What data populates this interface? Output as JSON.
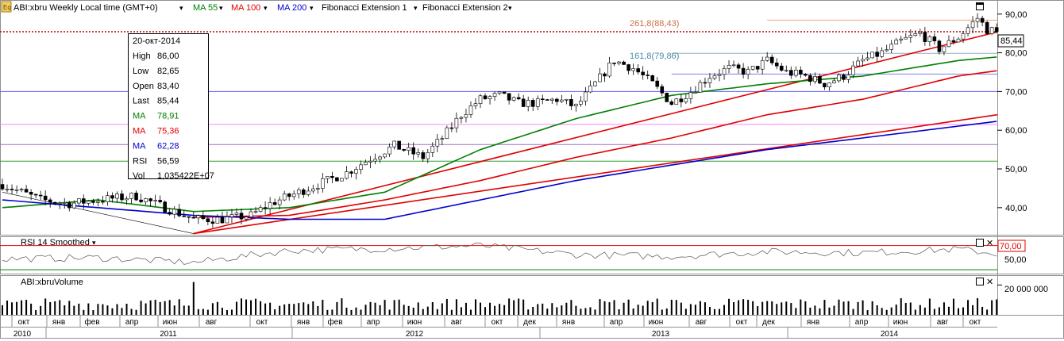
{
  "toolbar": {
    "symbol_label": "ABI:xbru Weekly Local time (GMT+0)",
    "ma55_label": "MA 55",
    "ma100_label": "MA 100",
    "ma200_label": "MA 200",
    "fib1_label": "Fibonacci Extension 1",
    "fib2_label": "Fibonacci Extension 2",
    "dropdown_glyph": "▾",
    "ma55_color": "#008000",
    "ma100_color": "#e00000",
    "ma200_color": "#0000d0"
  },
  "tooltip": {
    "date": "20-окт-2014",
    "rows": [
      {
        "label": "High",
        "value": "86,00",
        "color": "#000000"
      },
      {
        "label": "Low",
        "value": "82,65",
        "color": "#000000"
      },
      {
        "label": "Open",
        "value": "83,40",
        "color": "#000000"
      },
      {
        "label": "Last",
        "value": "85,44",
        "color": "#000000"
      },
      {
        "label": "MA",
        "value": "78,91",
        "color": "#008000"
      },
      {
        "label": "MA",
        "value": "75,36",
        "color": "#e00000"
      },
      {
        "label": "MA",
        "value": "62,28",
        "color": "#0000d0"
      },
      {
        "label": "RSI",
        "value": "56,59",
        "color": "#000000"
      },
      {
        "label": "Vol",
        "value": "1,035422E+07",
        "color": "#000000"
      }
    ]
  },
  "price_panel": {
    "last_price_label": "85,44",
    "last_price": 85.44,
    "fib_labels": [
      {
        "text": "261,8(88,43)",
        "value": 88.43,
        "color": "#c8704a"
      },
      {
        "text": "161,8(79,86)",
        "value": 79.86,
        "color": "#4a8aa8"
      }
    ]
  },
  "rsi_panel": {
    "title": "RSI 14 Smoothed",
    "dropdown_glyph": "▾",
    "level_label": "70,00",
    "axis_label": "50,00"
  },
  "volume_panel": {
    "title": "ABI:xbruVolume",
    "axis_label": "20 000 000"
  },
  "panel_controls": {
    "restore_glyph": "□",
    "close_glyph": "✕"
  },
  "chart_data": {
    "type": "candlestick",
    "x_start": "2010-10",
    "x_end": "2014-10",
    "y_ticks": [
      "90,00",
      "80,00",
      "70,00",
      "60,00",
      "50,00",
      "40,00"
    ],
    "ylim": [
      33,
      92
    ],
    "months": [
      "окт",
      "янв",
      "фев",
      "апр",
      "июн",
      "авг",
      "окт",
      "янв",
      "фев",
      "апр",
      "июн",
      "авг",
      "окт",
      "дек",
      "янв",
      "апр",
      "июн",
      "авг",
      "окт",
      "дек",
      "янв",
      "апр",
      "июн",
      "авг",
      "окт"
    ],
    "years": [
      "2010",
      "2011",
      "2012",
      "2013",
      "2014"
    ],
    "price_keypoints": [
      [
        0,
        46
      ],
      [
        8,
        42
      ],
      [
        14,
        41
      ],
      [
        20,
        42
      ],
      [
        28,
        43
      ],
      [
        34,
        40
      ],
      [
        40,
        37
      ],
      [
        46,
        37
      ],
      [
        52,
        38
      ],
      [
        56,
        41
      ],
      [
        64,
        45
      ],
      [
        72,
        49
      ],
      [
        76,
        52
      ],
      [
        82,
        56
      ],
      [
        88,
        53
      ],
      [
        92,
        58
      ],
      [
        96,
        64
      ],
      [
        100,
        68
      ],
      [
        104,
        69
      ],
      [
        108,
        67
      ],
      [
        112,
        67
      ],
      [
        116,
        68
      ],
      [
        120,
        66
      ],
      [
        124,
        72
      ],
      [
        128,
        78
      ],
      [
        132,
        76
      ],
      [
        136,
        72
      ],
      [
        140,
        67
      ],
      [
        144,
        70
      ],
      [
        148,
        74
      ],
      [
        152,
        76
      ],
      [
        156,
        75
      ],
      [
        160,
        78
      ],
      [
        164,
        75
      ],
      [
        168,
        74
      ],
      [
        172,
        72
      ],
      [
        176,
        74
      ],
      [
        180,
        78
      ],
      [
        184,
        80
      ],
      [
        188,
        83
      ],
      [
        192,
        85
      ],
      [
        196,
        81
      ],
      [
        200,
        84
      ],
      [
        204,
        89
      ],
      [
        206,
        86
      ],
      [
        208,
        85.44
      ]
    ],
    "ma_keypoints": {
      "ma55": [
        [
          0,
          40
        ],
        [
          20,
          42
        ],
        [
          40,
          39
        ],
        [
          60,
          40
        ],
        [
          80,
          44
        ],
        [
          100,
          55
        ],
        [
          120,
          63
        ],
        [
          140,
          69
        ],
        [
          160,
          72
        ],
        [
          180,
          74
        ],
        [
          200,
          78
        ],
        [
          208,
          78.91
        ]
      ],
      "ma100": [
        [
          40,
          37.5
        ],
        [
          60,
          38
        ],
        [
          80,
          42
        ],
        [
          100,
          47
        ],
        [
          120,
          53
        ],
        [
          140,
          58
        ],
        [
          160,
          64
        ],
        [
          180,
          68
        ],
        [
          200,
          74
        ],
        [
          208,
          75.36
        ]
      ],
      "ma200": [
        [
          0,
          42
        ],
        [
          20,
          40
        ],
        [
          40,
          38
        ],
        [
          60,
          37
        ],
        [
          80,
          37
        ],
        [
          100,
          42
        ],
        [
          120,
          47
        ],
        [
          140,
          51
        ],
        [
          160,
          55
        ],
        [
          180,
          58
        ],
        [
          208,
          62.28
        ]
      ]
    },
    "trendlines": [
      {
        "from": [
          40,
          33.3
        ],
        "to": [
          214,
          85.4
        ],
        "color": "#e00000"
      },
      {
        "from": [
          40,
          33.3
        ],
        "to": [
          214,
          64
        ],
        "color": "#e00000"
      },
      {
        "from": [
          0,
          44
        ],
        "to": [
          40,
          33.3
        ],
        "color": "#000000"
      }
    ],
    "horizontal_lines": [
      {
        "value": 88.43,
        "color": "#f0a080",
        "style": "solid",
        "from": 160
      },
      {
        "value": 85.44,
        "color": "#c00000",
        "style": "dotted"
      },
      {
        "value": 79.86,
        "color": "#90b0c0",
        "style": "solid",
        "from": 140
      },
      {
        "value": 74.5,
        "color": "#8080f0",
        "style": "solid",
        "from": 140
      },
      {
        "value": 70,
        "color": "#6060ff",
        "style": "solid"
      },
      {
        "value": 61.5,
        "color": "#ff80ff",
        "style": "solid"
      },
      {
        "value": 56.3,
        "color": "#a070c0",
        "style": "solid"
      },
      {
        "value": 52,
        "color": "#30a030",
        "style": "solid"
      }
    ],
    "rsi": {
      "levels": [
        70,
        30
      ],
      "ylim": [
        25,
        80
      ],
      "keypoints": [
        [
          0,
          48
        ],
        [
          20,
          50
        ],
        [
          40,
          42
        ],
        [
          60,
          62
        ],
        [
          80,
          65
        ],
        [
          100,
          70
        ],
        [
          120,
          55
        ],
        [
          140,
          52
        ],
        [
          160,
          60
        ],
        [
          180,
          58
        ],
        [
          200,
          64
        ],
        [
          208,
          56.59
        ]
      ]
    },
    "volume": {
      "ylim": [
        0,
        25000000
      ],
      "last": 10354220,
      "typical": 9000000,
      "peak": 22000000
    }
  }
}
